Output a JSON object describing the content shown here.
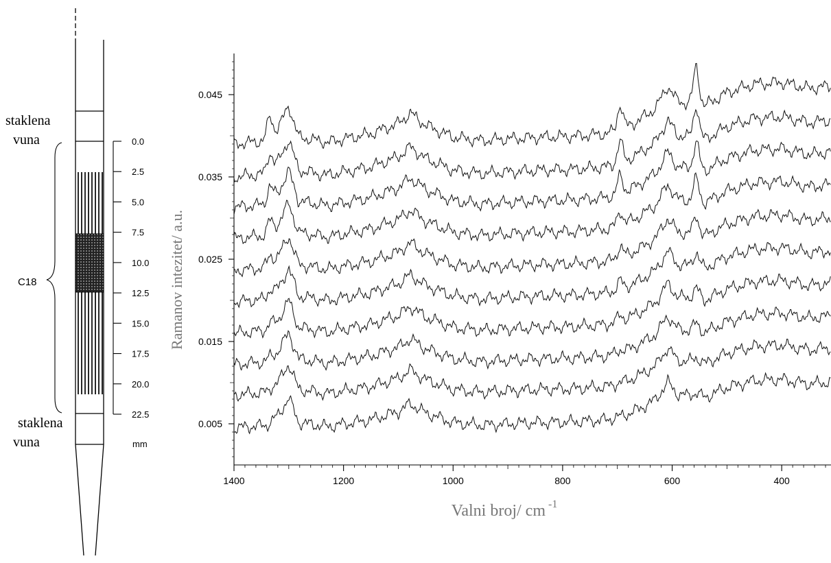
{
  "column": {
    "top_label_line1": "staklena",
    "top_label_line2": "vuna",
    "bottom_label_line1": "staklena",
    "bottom_label_line2": "vuna",
    "phase_label": "C18",
    "scale_unit": "mm",
    "scale_ticks": [
      "0.0",
      "2.5",
      "5.0",
      "7.5",
      "10.0",
      "12.5",
      "15.0",
      "17.5",
      "20.0",
      "22.5"
    ]
  },
  "chart_data": {
    "type": "line",
    "xlabel": "Valni broj/ cm",
    "xlabel_superscript": "-1",
    "ylabel": "Ramanov intezitet/ a.u.",
    "xlim": [
      1400,
      310
    ],
    "ylim": [
      0.0,
      0.05
    ],
    "x_reversed": true,
    "x_ticks": [
      1400,
      1200,
      1000,
      800,
      600,
      400
    ],
    "y_ticks": [
      0.005,
      0.015,
      0.025,
      0.035,
      0.045
    ],
    "y_tick_labels": [
      "0.005",
      "0.015",
      "0.025",
      "0.035",
      "0.045"
    ],
    "grid": false,
    "legend": "none",
    "series_count": 10,
    "series_offsets": [
      0.0045,
      0.0085,
      0.0122,
      0.016,
      0.0198,
      0.0236,
      0.0275,
      0.0313,
      0.035,
      0.039
    ],
    "shape_points": {
      "x": [
        1400,
        1340,
        1318,
        1300,
        1282,
        1230,
        1150,
        1100,
        1078,
        1050,
        1000,
        950,
        900,
        840,
        780,
        720,
        690,
        660,
        630,
        608,
        590,
        572,
        556,
        540,
        500,
        450,
        400,
        350,
        310
      ],
      "y": [
        0.0,
        0.0004,
        0.002,
        0.0045,
        0.0008,
        0.0002,
        0.0012,
        0.0024,
        0.0036,
        0.0022,
        0.0008,
        0.0004,
        0.0006,
        0.0008,
        0.0009,
        0.0012,
        0.0018,
        0.0028,
        0.0042,
        0.0068,
        0.005,
        0.0048,
        0.0052,
        0.0045,
        0.006,
        0.007,
        0.0072,
        0.0065,
        0.0068
      ]
    },
    "sharp_peaks": {
      "x": [
        1335,
        1300,
        695,
        556
      ],
      "extra_height_lower": [
        0.0,
        0.0,
        0.0,
        0.0
      ],
      "extra_height_upper": [
        0.0025,
        0.0,
        0.003,
        0.004
      ]
    },
    "line_color": "#111111"
  }
}
